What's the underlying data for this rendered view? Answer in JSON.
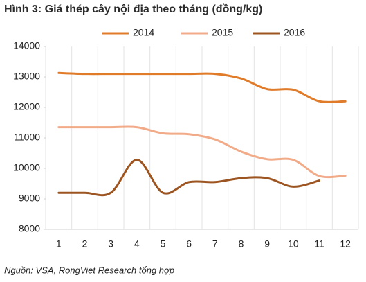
{
  "chart_data": {
    "type": "line",
    "title": "Hình 3: Giá thép cây nội địa theo tháng (đồng/kg)",
    "source": "Nguồn: VSA, RongViet Research tổng hợp",
    "categories": [
      "1",
      "2",
      "3",
      "4",
      "5",
      "6",
      "7",
      "8",
      "9",
      "10",
      "11",
      "12"
    ],
    "series": [
      {
        "name": "2014",
        "color": "#e07b2a",
        "values": [
          13130,
          13100,
          13100,
          13100,
          13100,
          13100,
          13100,
          12950,
          12600,
          12580,
          12200,
          12200
        ]
      },
      {
        "name": "2015",
        "color": "#f2ab88",
        "values": [
          11350,
          11350,
          11350,
          11350,
          11150,
          11120,
          10950,
          10550,
          10300,
          10280,
          9750,
          9760
        ]
      },
      {
        "name": "2016",
        "color": "#9c5420",
        "values": [
          9200,
          9200,
          9200,
          10280,
          9200,
          9550,
          9550,
          9680,
          9680,
          9400,
          9600,
          null
        ]
      }
    ],
    "ylim": [
      8000,
      14000
    ],
    "yticks": [
      8000,
      9000,
      10000,
      11000,
      12000,
      13000,
      14000
    ],
    "legend": "top"
  }
}
